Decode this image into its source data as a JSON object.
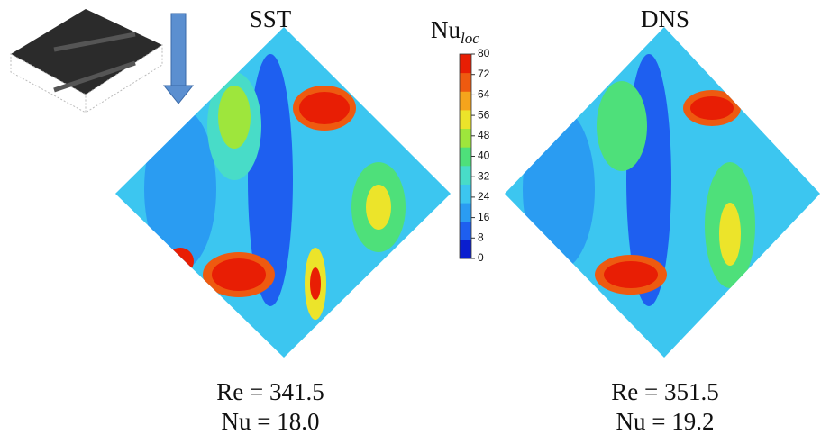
{
  "panels": [
    {
      "title": "SST",
      "re": "Re = 341.5",
      "nu": "Nu = 18.0"
    },
    {
      "title": "DNS",
      "re": "Re = 351.5",
      "nu": "Nu = 19.2"
    }
  ],
  "colorbar": {
    "label": "Nu",
    "label_sub": "loc",
    "lim": [
      0,
      80
    ],
    "ticks": [
      0,
      8,
      16,
      24,
      32,
      40,
      48,
      56,
      64,
      72,
      80
    ],
    "colors": [
      "#0a1ecf",
      "#1e5ff0",
      "#2a9cf2",
      "#3cc6f0",
      "#48dcc8",
      "#4ee07a",
      "#9ee63c",
      "#ece42a",
      "#f5a41c",
      "#ee5a10",
      "#e81e04"
    ]
  }
}
